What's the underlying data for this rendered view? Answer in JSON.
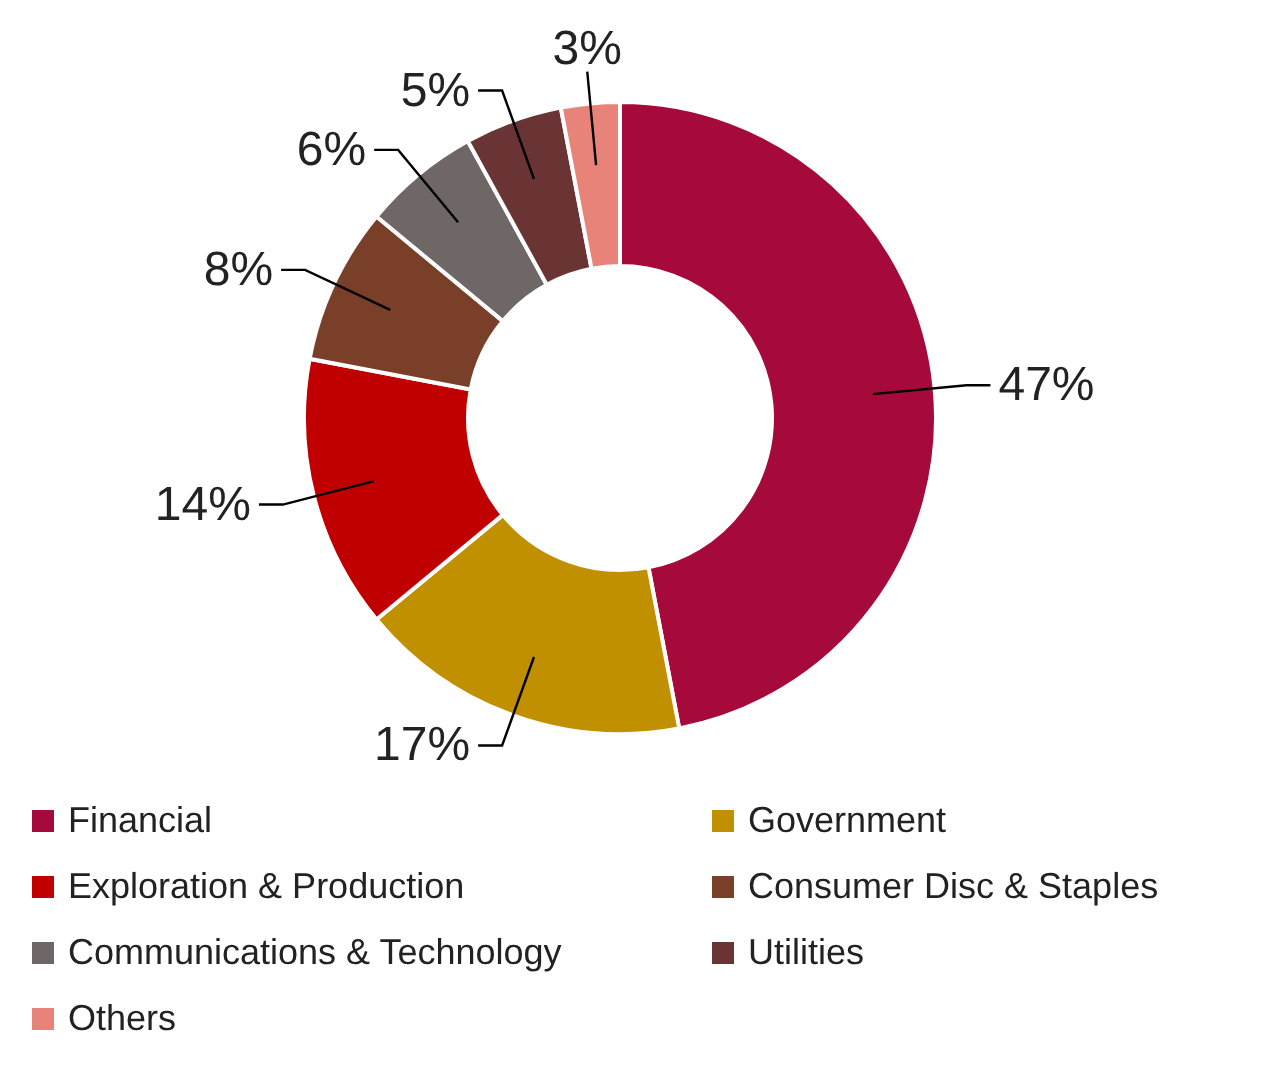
{
  "chart_data": {
    "type": "donut",
    "categories": [
      "Financial",
      "Government",
      "Exploration & Production",
      "Consumer Disc & Staples",
      "Communications & Technology",
      "Utilities",
      "Others"
    ],
    "values": [
      47,
      17,
      14,
      8,
      6,
      5,
      3
    ],
    "value_labels": [
      "47%",
      "17%",
      "14%",
      "8%",
      "6%",
      "5%",
      "3%"
    ],
    "colors": [
      "#a50a3a",
      "#c09000",
      "#c00000",
      "#7a3f28",
      "#6f6666",
      "#6b3434",
      "#e8837a"
    ],
    "legend": "bottom"
  }
}
